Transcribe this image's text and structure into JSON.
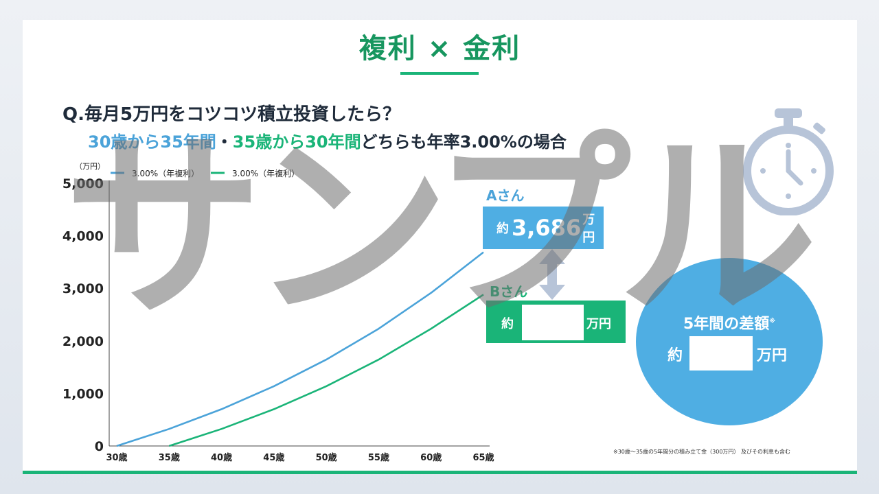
{
  "slide": {
    "title": "複利 × 金利",
    "question": "Q.毎月5万円をコツコツ積立投資したら？",
    "sub_blue": "30歳から35年間",
    "sub_sep": "・",
    "sub_green": "35歳から30年間",
    "sub_rest": "どちらも年率3.00%の場合",
    "watermark": "サンプル",
    "footnote": "※30歳～35歳の5年間分の積み立て金（300万円） 及びその利息も含む"
  },
  "person_a": {
    "label": "Aさん",
    "prefix": "約",
    "value": "3,686",
    "unit": "万円"
  },
  "person_b": {
    "label": "Bさん",
    "prefix": "約",
    "unit": "万円"
  },
  "difference": {
    "title": "5年間の差額",
    "mark": "※",
    "prefix": "約",
    "unit": "万円"
  },
  "colors": {
    "green": "#1ab478",
    "blue": "#4faee3",
    "text": "#1f2b3a",
    "timer": "#b7c4d8"
  },
  "icons": [
    "stopwatch-icon",
    "double-arrow-icon"
  ],
  "chart_data": {
    "type": "line",
    "ylabel": "（万円）",
    "ylim": [
      0,
      5000
    ],
    "yticks": [
      "5,000",
      "4,000",
      "3,000",
      "2,000",
      "1,000",
      "0"
    ],
    "xticks": [
      "30歳",
      "35歳",
      "40歳",
      "45歳",
      "50歳",
      "55歳",
      "60歳",
      "65歳"
    ],
    "x": [
      30,
      35,
      40,
      45,
      50,
      55,
      60,
      65
    ],
    "legend_position": "top-left",
    "series": [
      {
        "name": "3.00%（年複利）",
        "color": "#4ba3d9",
        "values": [
          0,
          324,
          700,
          1137,
          1644,
          2231,
          2913,
          3686
        ]
      },
      {
        "name": "3.00%（年複利）",
        "color": "#1ab478",
        "values": [
          null,
          0,
          324,
          700,
          1137,
          1644,
          2231,
          2880
        ]
      }
    ]
  }
}
